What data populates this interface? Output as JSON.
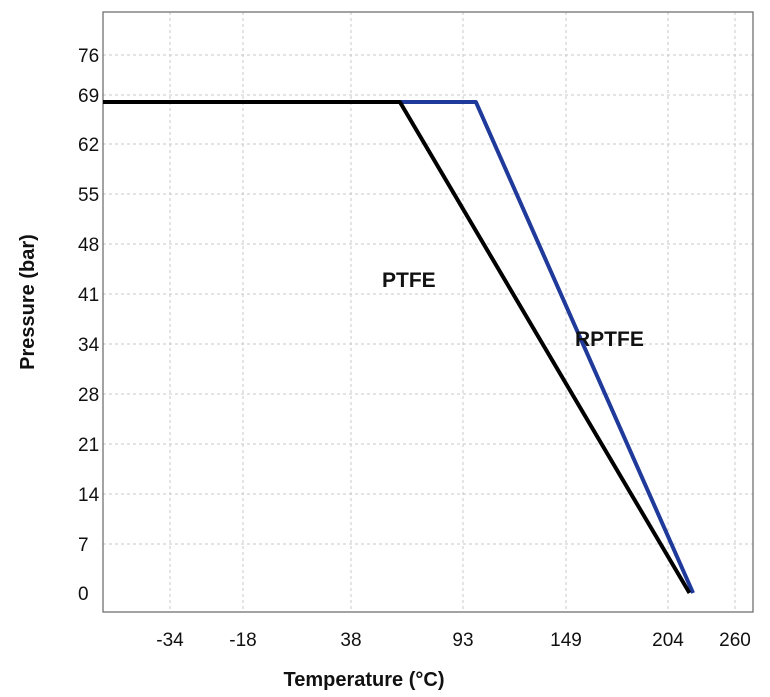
{
  "chart_data": {
    "type": "line",
    "xlabel": "Temperature (°C)",
    "ylabel": "Pressure (bar)",
    "x_ticks": [
      "-34",
      "-18",
      "38",
      "93",
      "149",
      "204",
      "260"
    ],
    "y_ticks": [
      "0",
      "7",
      "14",
      "21",
      "28",
      "34",
      "41",
      "48",
      "55",
      "62",
      "69",
      "76"
    ],
    "grid": true,
    "series": [
      {
        "name": "PTFE",
        "color": "#000000",
        "points": [
          [
            -62,
            68
          ],
          [
            62,
            68
          ],
          [
            222,
            0
          ]
        ]
      },
      {
        "name": "RPTFE",
        "color": "#1f3a9a",
        "points": [
          [
            -62,
            68
          ],
          [
            100,
            68
          ],
          [
            225,
            0
          ]
        ]
      }
    ]
  }
}
